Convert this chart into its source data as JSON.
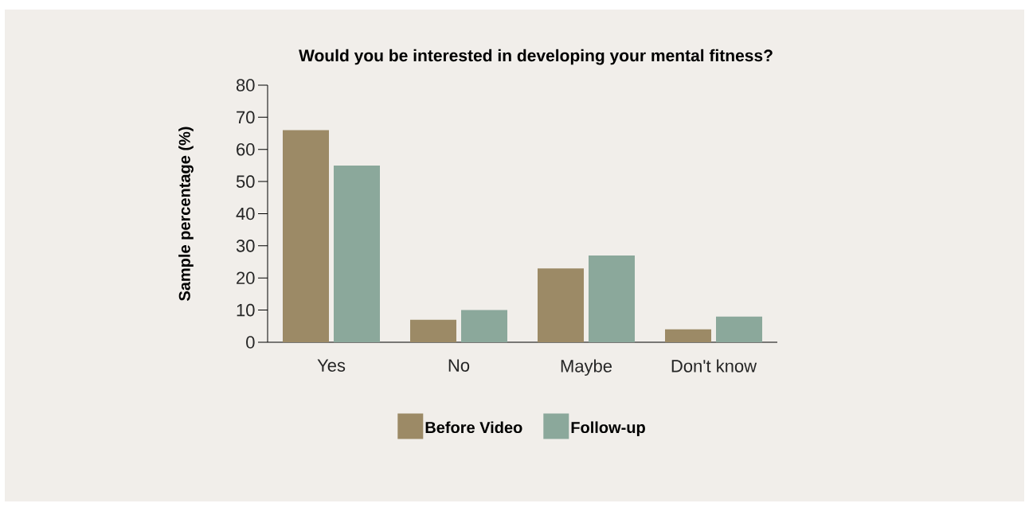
{
  "chart_data": {
    "type": "bar",
    "title": "Would you be interested in developing your mental fitness?",
    "ylabel": "Sample percentage (%)",
    "categories": [
      "Yes",
      "No",
      "Maybe",
      "Don't know"
    ],
    "series": [
      {
        "name": "Before Video",
        "color": "#9c8a66",
        "values": [
          66,
          7,
          23,
          4
        ]
      },
      {
        "name": "Follow-up",
        "color": "#8ba89b",
        "values": [
          55,
          10,
          27,
          8
        ]
      }
    ],
    "ylim": [
      0,
      80
    ],
    "yticks": [
      0,
      10,
      20,
      30,
      40,
      50,
      60,
      70,
      80
    ],
    "legend": "bottom"
  }
}
